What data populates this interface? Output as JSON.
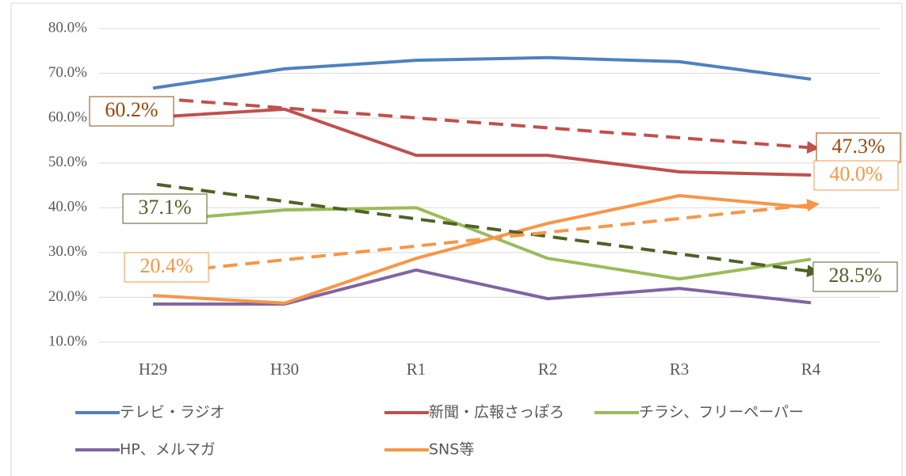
{
  "chart_data": {
    "type": "line",
    "categories": [
      "H29",
      "H30",
      "R1",
      "R2",
      "R3",
      "R4"
    ],
    "series": [
      {
        "name": "テレビ・ラジオ",
        "color": "#4f81bd",
        "values": [
          66.7,
          71.0,
          72.9,
          73.5,
          72.6,
          68.7
        ]
      },
      {
        "name": "新聞・広報さっぽろ",
        "color": "#c0504d",
        "values": [
          60.2,
          62.0,
          51.7,
          51.7,
          48.0,
          47.3
        ],
        "value_labels": [
          "60.2%",
          null,
          null,
          null,
          null,
          "47.3%"
        ],
        "label_color": "#984807"
      },
      {
        "name": "チラシ、フリーペーパー",
        "color": "#9bbb59",
        "values": [
          37.1,
          39.5,
          40.0,
          28.7,
          24.1,
          28.5
        ],
        "value_labels": [
          "37.1%",
          null,
          null,
          null,
          null,
          "28.5%"
        ],
        "label_color": "#4f6228"
      },
      {
        "name": "HP、メルマガ",
        "color": "#8064a2",
        "values": [
          18.5,
          18.5,
          26.1,
          19.7,
          22.0,
          18.8
        ]
      },
      {
        "name": "SNS等",
        "color": "#f79646",
        "values": [
          20.4,
          18.7,
          28.7,
          36.5,
          42.7,
          40.0
        ],
        "value_labels": [
          "20.4%",
          null,
          null,
          null,
          null,
          "40.0%"
        ],
        "label_color": "#f79646"
      }
    ],
    "trendlines": [
      {
        "color": "#c0504d",
        "from": 64.4,
        "to": 53.3
      },
      {
        "color": "#4f6228",
        "from": 45.2,
        "to": 25.6
      },
      {
        "color": "#f79646",
        "from": 25.4,
        "to": 40.8
      }
    ],
    "ylim": [
      10,
      80
    ],
    "yticks": [
      {
        "value": 10,
        "label": "10.0%"
      },
      {
        "value": 20,
        "label": "20.0%"
      },
      {
        "value": 30,
        "label": "30.0%"
      },
      {
        "value": 40,
        "label": "40.0%"
      },
      {
        "value": 50,
        "label": "50.0%"
      },
      {
        "value": 60,
        "label": "60.0%"
      },
      {
        "value": 70,
        "label": "70.0%"
      },
      {
        "value": 80,
        "label": "80.0%"
      }
    ],
    "grid": true
  }
}
